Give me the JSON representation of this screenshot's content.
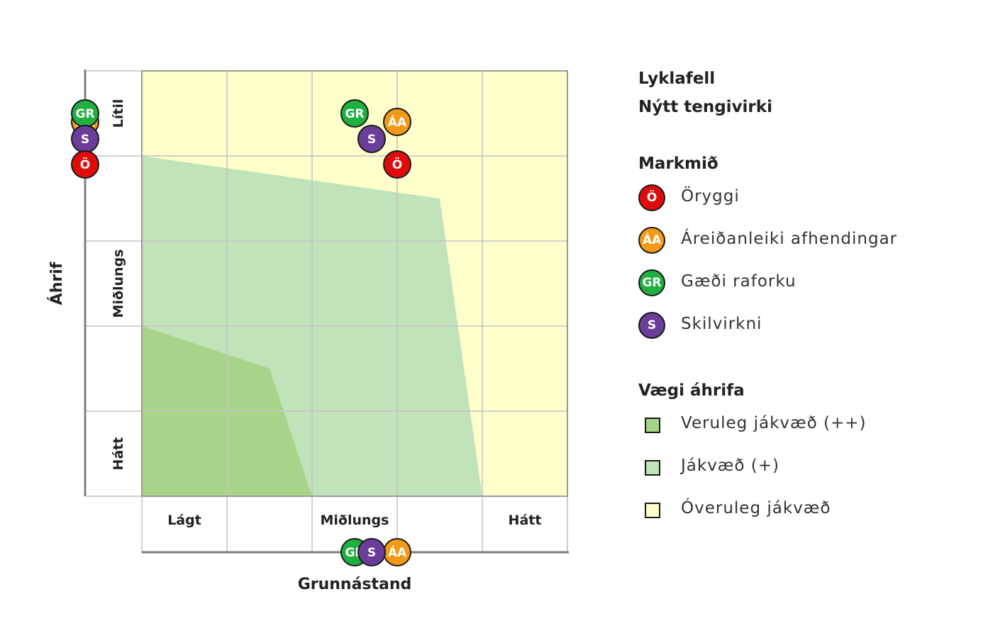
{
  "chart_data": {
    "type": "scatter",
    "title": "Lyklafell",
    "subtitle": "Nýtt tengivirki",
    "xlabel": "Grunnástand",
    "ylabel": "Áhrif",
    "x_ticks": [
      "Lágt",
      "Miðlungs",
      "Hátt"
    ],
    "y_ticks": [
      "Lítil",
      "Miðlungs",
      "Hátt"
    ],
    "xlim": [
      0,
      5
    ],
    "ylim": [
      0,
      5
    ],
    "zones": [
      {
        "name": "Óveruleg jákvæð",
        "color": "#ffffcc",
        "polygon": [
          [
            0,
            0
          ],
          [
            5,
            0
          ],
          [
            5,
            5
          ],
          [
            0,
            5
          ]
        ]
      },
      {
        "name": "Jákvæð (+)",
        "color": "#c1e3ba",
        "polygon": [
          [
            0,
            0
          ],
          [
            4,
            0
          ],
          [
            3.5,
            3.5
          ],
          [
            0,
            4
          ]
        ]
      },
      {
        "name": "Veruleg jákvæð (++)",
        "color": "#a8d48a",
        "polygon": [
          [
            0,
            0
          ],
          [
            2,
            0
          ],
          [
            1.5,
            1.5
          ],
          [
            0,
            2
          ]
        ]
      }
    ],
    "points": [
      {
        "label": "GR",
        "x": 2.5,
        "y": 4.5,
        "color": "#1fb040"
      },
      {
        "label": "ÁA",
        "x": 3.0,
        "y": 4.4,
        "color": "#f29a17"
      },
      {
        "label": "S",
        "x": 2.7,
        "y": 4.2,
        "color": "#6a3d9a"
      },
      {
        "label": "Ö",
        "x": 3.0,
        "y": 3.9,
        "color": "#e00b0b"
      }
    ],
    "y_axis_markers": [
      {
        "label": "ÁA",
        "y": 4.4,
        "color": "#f29a17"
      },
      {
        "label": "GR",
        "y": 4.5,
        "color": "#1fb040"
      },
      {
        "label": "S",
        "y": 4.2,
        "color": "#6a3d9a"
      },
      {
        "label": "Ö",
        "y": 3.9,
        "color": "#e00b0b"
      }
    ],
    "x_axis_markers": [
      {
        "label": "GR",
        "x": 2.5,
        "color": "#1fb040"
      },
      {
        "label": "ÁA",
        "x": 3.0,
        "color": "#f29a17"
      },
      {
        "label": "S",
        "x": 2.7,
        "color": "#6a3d9a"
      }
    ]
  },
  "legend": {
    "title": "Lyklafell",
    "subtitle": "Nýtt tengivirki",
    "goals_title": "Markmið",
    "goals": [
      {
        "badge": "Ö",
        "label": "Öryggi",
        "color": "#e00b0b"
      },
      {
        "badge": "ÁA",
        "label": "Áreiðanleiki afhendingar",
        "color": "#f29a17"
      },
      {
        "badge": "GR",
        "label": "Gæði raforku",
        "color": "#1fb040"
      },
      {
        "badge": "S",
        "label": "Skilvirkni",
        "color": "#6a3d9a"
      }
    ],
    "impact_title": "Vægi áhrifa",
    "impacts": [
      {
        "label": "Veruleg jákvæð (++)",
        "color": "#a8d48a"
      },
      {
        "label": "Jákvæð (+)",
        "color": "#c1e3ba"
      },
      {
        "label": "Óveruleg jákvæð",
        "color": "#ffffcc"
      }
    ]
  }
}
